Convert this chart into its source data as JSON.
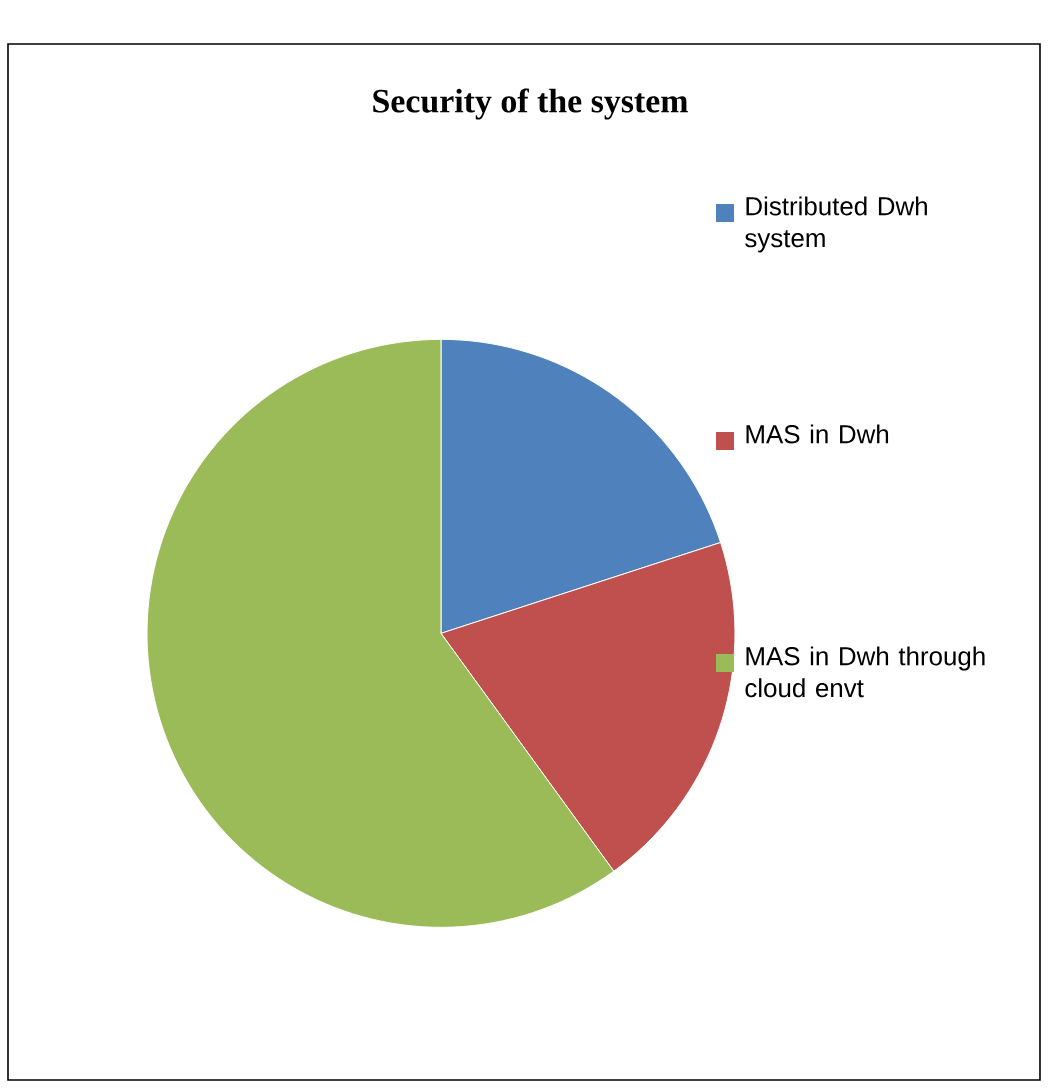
{
  "chart_data": {
    "type": "pie",
    "title": "Security of the system",
    "categories": [
      "Distributed Dwh system",
      "MAS in Dwh",
      "MAS in Dwh through cloud envt"
    ],
    "values": [
      20,
      20,
      60
    ],
    "colors": [
      "#4f81bd",
      "#c0504d",
      "#9bbb59"
    ],
    "legend": "right"
  }
}
